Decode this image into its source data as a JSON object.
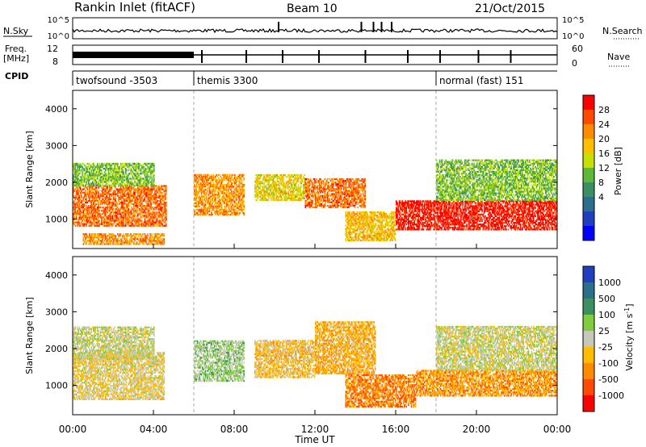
{
  "header": {
    "title": "Rankin Inlet (fitACF)",
    "beam": "Beam 10",
    "date": "21/Oct/2015"
  },
  "strip_labels": {
    "nsky": "N.Sky",
    "freq": "Freq.",
    "freq_unit": "[MHz]",
    "cpid": "CPID",
    "nsearch": "N.Search",
    "nave": "Nave",
    "noise_ticks_left": [
      "10^5",
      "10^0"
    ],
    "noise_ticks_right": [
      "10^5",
      "10^0"
    ],
    "freq_ticks": [
      "12",
      "8"
    ],
    "nave_ticks": [
      "60",
      "0"
    ]
  },
  "cpid_segments": [
    {
      "label": "twofsound  -3503",
      "start_hour": 0
    },
    {
      "label": "themis 3300",
      "start_hour": 6
    },
    {
      "label": "normal (fast) 151",
      "start_hour": 18
    }
  ],
  "axes": {
    "ylabel": "Slant Range [km]",
    "xlabel": "Time UT",
    "x_ticks": [
      "00:00",
      "04:00",
      "08:00",
      "12:00",
      "16:00",
      "20:00",
      "00:00"
    ],
    "y_ticks": [
      "1000",
      "2000",
      "3000",
      "4000"
    ]
  },
  "colorbars": {
    "power": {
      "label": "Power [dB]",
      "ticks": [
        "28",
        "24",
        "20",
        "16",
        "12",
        "8",
        "4"
      ],
      "colors": [
        "#ff0000",
        "#ff4a00",
        "#ff8c00",
        "#ffbf00",
        "#c8e000",
        "#5fb83a",
        "#3c8f60",
        "#2d6e8c",
        "#1f3fbf",
        "#0000ff"
      ]
    },
    "velocity": {
      "label": "Velocity [m s",
      "label_sup": "-1",
      "label_end": "]",
      "ticks": [
        "1000",
        "500",
        "100",
        "25",
        "-25",
        "-100",
        "-500",
        "-1000"
      ],
      "colors": [
        "#1f3fbf",
        "#2d6e8c",
        "#3c8f60",
        "#7fcc3f",
        "#c8c8b8",
        "#ffbf00",
        "#ff8c00",
        "#ff4a00",
        "#ff0000"
      ]
    }
  },
  "chart_data": [
    {
      "type": "heatmap",
      "title": "Power",
      "xlabel": "Time UT",
      "ylabel": "Slant Range [km]",
      "xlim": [
        0,
        24
      ],
      "ylim": [
        200,
        4500
      ],
      "colorbar_range": [
        0,
        30
      ],
      "regions": [
        {
          "t_start": 0.0,
          "t_end": 4.6,
          "r_low": 800,
          "r_high": 1900,
          "value": 24
        },
        {
          "t_start": 0.0,
          "t_end": 4.0,
          "r_low": 1900,
          "r_high": 2500,
          "value": 14
        },
        {
          "t_start": 0.5,
          "t_end": 4.5,
          "r_low": 300,
          "r_high": 600,
          "value": 22
        },
        {
          "t_start": 6.0,
          "t_end": 8.5,
          "r_low": 1100,
          "r_high": 2200,
          "value": 22
        },
        {
          "t_start": 9.0,
          "t_end": 11.5,
          "r_low": 1500,
          "r_high": 2200,
          "value": 18
        },
        {
          "t_start": 11.5,
          "t_end": 14.5,
          "r_low": 1300,
          "r_high": 2100,
          "value": 24
        },
        {
          "t_start": 13.5,
          "t_end": 16.0,
          "r_low": 400,
          "r_high": 1200,
          "value": 20
        },
        {
          "t_start": 16.0,
          "t_end": 24.0,
          "r_low": 700,
          "r_high": 1500,
          "value": 28
        },
        {
          "t_start": 18.0,
          "t_end": 24.0,
          "r_low": 1500,
          "r_high": 2600,
          "value": 14
        }
      ]
    },
    {
      "type": "heatmap",
      "title": "Velocity",
      "xlabel": "Time UT",
      "ylabel": "Slant Range [km]",
      "xlim": [
        0,
        24
      ],
      "ylim": [
        200,
        4500
      ],
      "colorbar_range": [
        -1000,
        1000
      ],
      "regions": [
        {
          "t_start": 0.0,
          "t_end": 4.5,
          "r_low": 600,
          "r_high": 1900,
          "value": -100
        },
        {
          "t_start": 0.0,
          "t_end": 4.0,
          "r_low": 1700,
          "r_high": 2600,
          "value": 0
        },
        {
          "t_start": 6.0,
          "t_end": 8.5,
          "r_low": 1100,
          "r_high": 2200,
          "value": 150
        },
        {
          "t_start": 9.0,
          "t_end": 12.0,
          "r_low": 1200,
          "r_high": 2200,
          "value": -200
        },
        {
          "t_start": 12.0,
          "t_end": 15.0,
          "r_low": 1300,
          "r_high": 2700,
          "value": -300
        },
        {
          "t_start": 13.5,
          "t_end": 17.0,
          "r_low": 400,
          "r_high": 1300,
          "value": -500
        },
        {
          "t_start": 17.0,
          "t_end": 24.0,
          "r_low": 700,
          "r_high": 1400,
          "value": -400
        },
        {
          "t_start": 18.0,
          "t_end": 24.0,
          "r_low": 1400,
          "r_high": 2600,
          "value": 0
        }
      ]
    }
  ]
}
